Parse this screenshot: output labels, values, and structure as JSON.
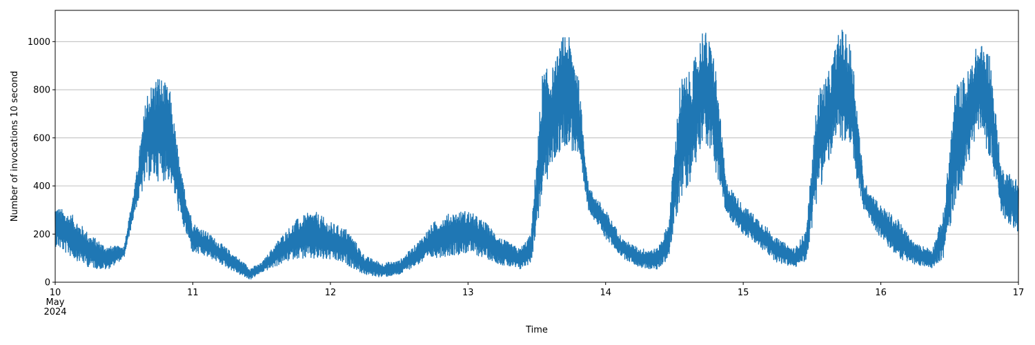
{
  "chart_data": {
    "type": "line",
    "title": "",
    "xlabel": "Time",
    "ylabel": "Number of invocations 10 second",
    "xlim": [
      "2024-05-10T00:00",
      "2024-05-17T00:00"
    ],
    "ylim": [
      0,
      1130
    ],
    "grid": "y",
    "legend": "none",
    "x_tick_labels": [
      {
        "date": "2024-05-10",
        "lines": [
          "10",
          "May",
          "2024"
        ]
      },
      {
        "date": "2024-05-11",
        "lines": [
          "11"
        ]
      },
      {
        "date": "2024-05-12",
        "lines": [
          "12"
        ]
      },
      {
        "date": "2024-05-13",
        "lines": [
          "13"
        ]
      },
      {
        "date": "2024-05-14",
        "lines": [
          "14"
        ]
      },
      {
        "date": "2024-05-15",
        "lines": [
          "15"
        ]
      },
      {
        "date": "2024-05-16",
        "lines": [
          "16"
        ]
      },
      {
        "date": "2024-05-17",
        "lines": [
          "17"
        ]
      }
    ],
    "y_ticks": [
      0,
      200,
      400,
      600,
      800,
      1000
    ],
    "series": [
      {
        "color": "#1f77b4",
        "x": [
          "2024-05-10T00:00",
          "2024-05-10T03:00",
          "2024-05-10T06:00",
          "2024-05-10T09:00",
          "2024-05-10T12:00",
          "2024-05-10T14:00",
          "2024-05-10T16:00",
          "2024-05-10T18:00",
          "2024-05-10T20:00",
          "2024-05-10T22:00",
          "2024-05-11T00:00",
          "2024-05-11T03:00",
          "2024-05-11T06:00",
          "2024-05-11T09:00",
          "2024-05-11T10:00",
          "2024-05-11T12:00",
          "2024-05-11T15:00",
          "2024-05-11T18:00",
          "2024-05-11T21:00",
          "2024-05-12T00:00",
          "2024-05-12T03:00",
          "2024-05-12T06:00",
          "2024-05-12T09:00",
          "2024-05-12T12:00",
          "2024-05-12T15:00",
          "2024-05-12T18:00",
          "2024-05-12T21:00",
          "2024-05-13T00:00",
          "2024-05-13T03:00",
          "2024-05-13T06:00",
          "2024-05-13T09:00",
          "2024-05-13T11:00",
          "2024-05-13T13:00",
          "2024-05-13T15:00",
          "2024-05-13T17:00",
          "2024-05-13T19:00",
          "2024-05-13T21:00",
          "2024-05-14T00:00",
          "2024-05-14T03:00",
          "2024-05-14T06:00",
          "2024-05-14T09:00",
          "2024-05-14T11:00",
          "2024-05-14T13:00",
          "2024-05-14T15:00",
          "2024-05-14T17:00",
          "2024-05-14T19:00",
          "2024-05-14T21:00",
          "2024-05-15T00:00",
          "2024-05-15T03:00",
          "2024-05-15T06:00",
          "2024-05-15T09:00",
          "2024-05-15T11:00",
          "2024-05-15T13:00",
          "2024-05-15T15:00",
          "2024-05-15T17:00",
          "2024-05-15T19:00",
          "2024-05-15T21:00",
          "2024-05-16T00:00",
          "2024-05-16T03:00",
          "2024-05-16T06:00",
          "2024-05-16T09:00",
          "2024-05-16T11:00",
          "2024-05-16T13:00",
          "2024-05-16T15:00",
          "2024-05-16T17:00",
          "2024-05-16T19:00",
          "2024-05-16T21:00",
          "2024-05-17T00:00"
        ],
        "lower": [
          150,
          100,
          60,
          50,
          100,
          300,
          420,
          420,
          420,
          250,
          120,
          100,
          60,
          20,
          10,
          40,
          70,
          100,
          90,
          90,
          70,
          30,
          20,
          30,
          70,
          100,
          110,
          120,
          100,
          70,
          50,
          80,
          360,
          500,
          570,
          520,
          300,
          180,
          100,
          60,
          50,
          100,
          340,
          430,
          600,
          480,
          280,
          200,
          140,
          80,
          60,
          90,
          360,
          500,
          600,
          500,
          300,
          180,
          100,
          70,
          60,
          100,
          330,
          460,
          640,
          520,
          280,
          200
        ],
        "upper": [
          320,
          280,
          200,
          150,
          150,
          420,
          800,
          870,
          800,
          450,
          250,
          200,
          140,
          80,
          60,
          80,
          180,
          260,
          300,
          250,
          220,
          110,
          80,
          90,
          160,
          250,
          290,
          300,
          250,
          180,
          140,
          200,
          880,
          900,
          1060,
          920,
          400,
          300,
          180,
          140,
          140,
          250,
          850,
          880,
          1070,
          950,
          420,
          320,
          260,
          180,
          140,
          220,
          800,
          880,
          1070,
          980,
          420,
          320,
          260,
          160,
          140,
          300,
          820,
          870,
          1000,
          960,
          480,
          430
        ]
      }
    ]
  }
}
